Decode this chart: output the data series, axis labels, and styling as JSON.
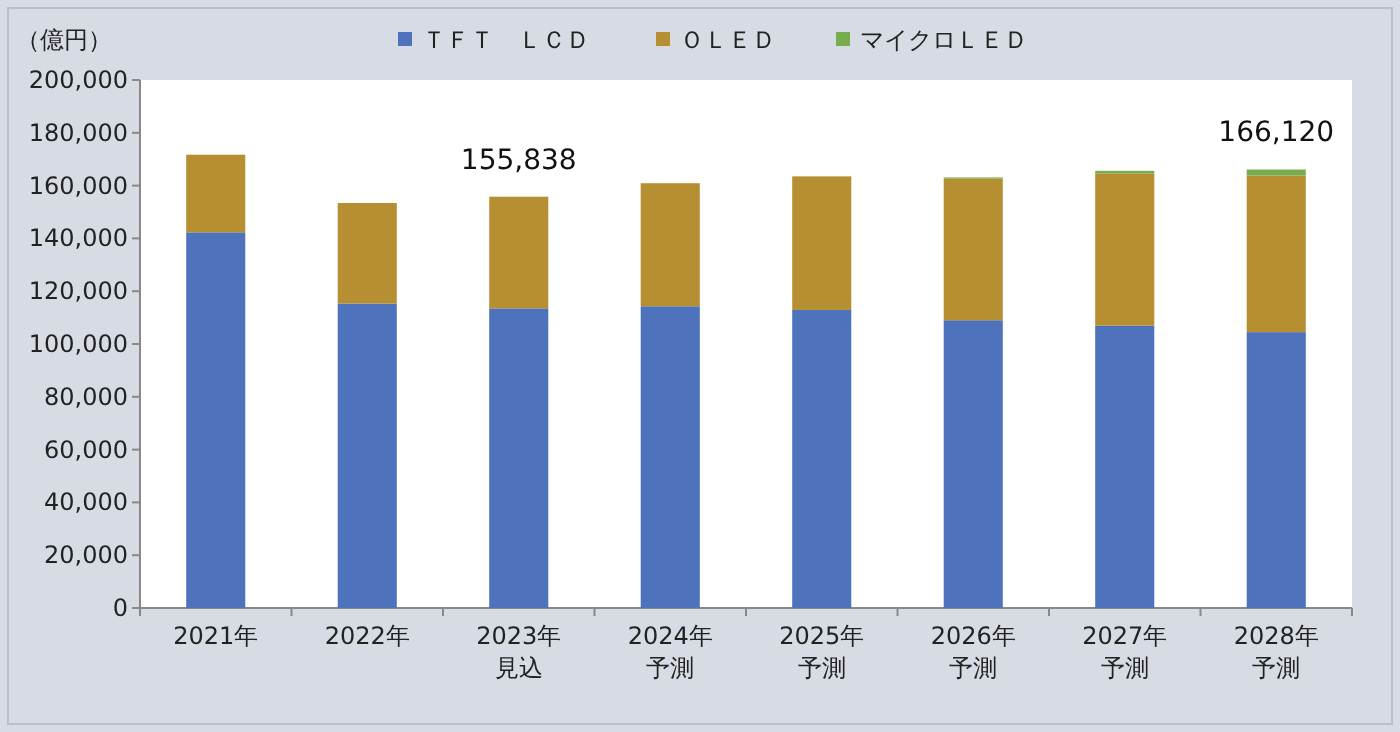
{
  "chart_data": {
    "type": "bar",
    "stacked": true,
    "ylabel": "（億円）",
    "legend": "top",
    "categories": [
      "2021年",
      "2022年",
      "2023年見込",
      "2024年予測",
      "2025年予測",
      "2026年予測",
      "2027年予測",
      "2028年予測"
    ],
    "series": [
      {
        "name": "ＴＦＴ　ＬＣＤ",
        "color": "#4f72bd",
        "values": [
          142300,
          115300,
          113500,
          114300,
          112900,
          109000,
          106900,
          104500
        ]
      },
      {
        "name": "ＯＬＥＤ",
        "color": "#b58f32",
        "values": [
          29400,
          38100,
          42300,
          46600,
          50600,
          53700,
          57700,
          59300
        ]
      },
      {
        "name": "マイクロＬＥＤ",
        "color": "#77ad4f",
        "values": [
          0,
          0,
          0,
          0,
          null,
          400,
          1000,
          2300
        ]
      }
    ],
    "ylim": [
      0,
      200000
    ],
    "yticks": [
      {
        "value": 0,
        "label": "0"
      },
      {
        "value": 20000,
        "label": "20,000"
      },
      {
        "value": 40000,
        "label": "40,000"
      },
      {
        "value": 60000,
        "label": "60,000"
      },
      {
        "value": 80000,
        "label": "80,000"
      },
      {
        "value": 100000,
        "label": "100,000"
      },
      {
        "value": 120000,
        "label": "120,000"
      },
      {
        "value": 140000,
        "label": "140,000"
      },
      {
        "value": 160000,
        "label": "160,000"
      },
      {
        "value": 180000,
        "label": "180,000"
      },
      {
        "value": 200000,
        "label": "200,000"
      }
    ],
    "annotations": [
      {
        "text": "155,838",
        "x": "2023年見込",
        "y": 155838
      },
      {
        "text": "166,120",
        "x": "2028年予測",
        "y": 166120
      }
    ]
  }
}
